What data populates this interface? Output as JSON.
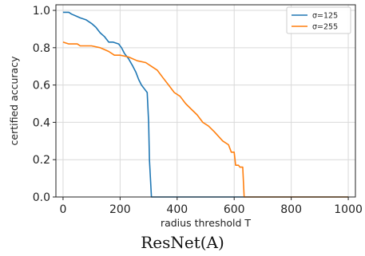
{
  "caption": "ResNet(A)",
  "chart_data": {
    "type": "line",
    "title": "",
    "xlabel": "radius threshold T",
    "ylabel": "certified accuracy",
    "xlim": [
      -25,
      1025
    ],
    "ylim": [
      0.0,
      1.03
    ],
    "xticks": [
      0,
      200,
      400,
      600,
      800,
      1000
    ],
    "yticks": [
      0.0,
      0.2,
      0.4,
      0.6,
      0.8,
      1.0
    ],
    "xtick_labels": [
      "0",
      "200",
      "400",
      "600",
      "800",
      "1000"
    ],
    "ytick_labels": [
      "0.0",
      "0.2",
      "0.4",
      "0.6",
      "0.8",
      "1.0"
    ],
    "grid": true,
    "legend_position": "top-right",
    "series": [
      {
        "name": "σ=125",
        "color": "#1f77b4",
        "x": [
          0,
          20,
          30,
          45,
          60,
          80,
          100,
          115,
          130,
          145,
          160,
          175,
          195,
          205,
          215,
          230,
          245,
          255,
          265,
          275,
          285,
          295,
          300,
          303,
          310,
          400,
          600,
          800,
          1000
        ],
        "y": [
          0.99,
          0.99,
          0.98,
          0.97,
          0.96,
          0.95,
          0.93,
          0.91,
          0.88,
          0.86,
          0.83,
          0.83,
          0.82,
          0.8,
          0.77,
          0.74,
          0.7,
          0.67,
          0.63,
          0.6,
          0.58,
          0.56,
          0.4,
          0.2,
          0.0,
          0.0,
          0.0,
          0.0,
          0.0
        ]
      },
      {
        "name": "σ=255",
        "color": "#ff7f0e",
        "x": [
          0,
          20,
          50,
          60,
          100,
          130,
          160,
          180,
          200,
          230,
          260,
          290,
          310,
          330,
          350,
          370,
          390,
          410,
          430,
          450,
          470,
          490,
          510,
          530,
          560,
          580,
          590,
          600,
          605,
          615,
          620,
          630,
          635,
          700,
          800,
          1000
        ],
        "y": [
          0.83,
          0.82,
          0.82,
          0.81,
          0.81,
          0.8,
          0.78,
          0.76,
          0.76,
          0.75,
          0.73,
          0.72,
          0.7,
          0.68,
          0.64,
          0.6,
          0.56,
          0.54,
          0.5,
          0.47,
          0.44,
          0.4,
          0.38,
          0.35,
          0.3,
          0.28,
          0.24,
          0.24,
          0.17,
          0.17,
          0.16,
          0.16,
          0.0,
          0.0,
          0.0,
          0.0
        ]
      }
    ]
  }
}
